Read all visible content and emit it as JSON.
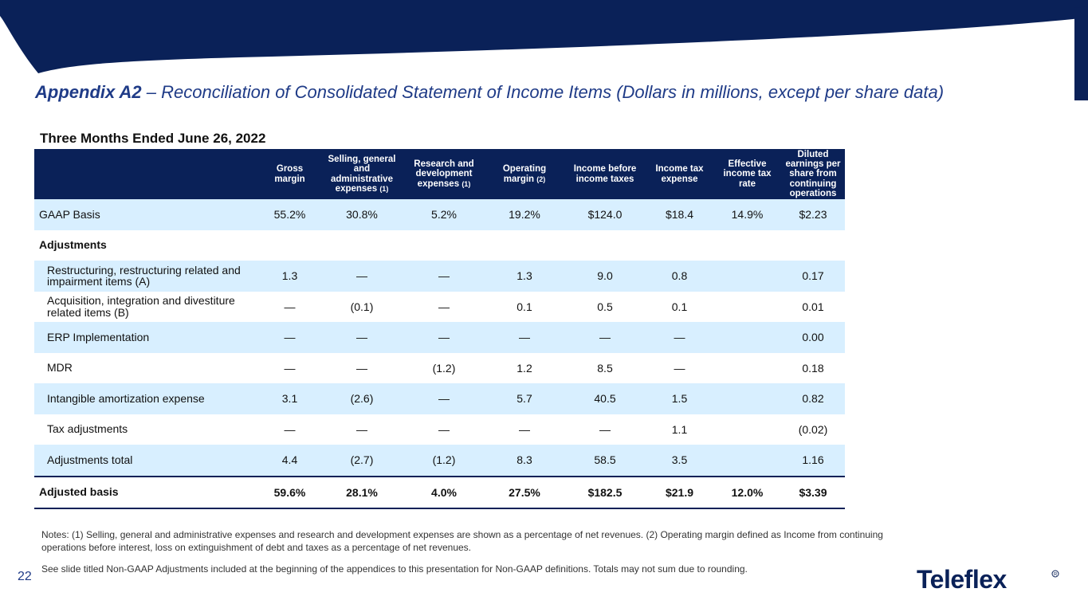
{
  "header": {
    "title_bold": "Appendix A2",
    "title_rest": " – Reconciliation of Consolidated Statement of Income Items (Dollars in millions, except per share data)"
  },
  "period": "Three Months Ended June 26, 2022",
  "table": {
    "columns": [
      {
        "label": "Gross margin",
        "note": ""
      },
      {
        "label": "Selling, general and administrative expenses",
        "note": "(1)"
      },
      {
        "label": "Research and development expenses",
        "note": "(1)"
      },
      {
        "label": "Operating margin",
        "note": "(2)"
      },
      {
        "label": "Income before income taxes",
        "note": ""
      },
      {
        "label": "Income tax expense",
        "note": ""
      },
      {
        "label": "Effective income tax rate",
        "note": ""
      },
      {
        "label": "Diluted earnings per share from continuing operations",
        "note": ""
      }
    ],
    "gaap": {
      "label": "GAAP Basis",
      "values": [
        "55.2%",
        "30.8%",
        "5.2%",
        "19.2%",
        "$124.0",
        "$18.4",
        "14.9%",
        "$2.23"
      ]
    },
    "adjustments_heading": "Adjustments",
    "adjustments": [
      {
        "label": "Restructuring, restructuring related and impairment items (A)",
        "values": [
          "1.3",
          "—",
          "—",
          "1.3",
          "9.0",
          "0.8",
          "",
          "0.17"
        ]
      },
      {
        "label": "Acquisition, integration and divestiture related items (B)",
        "values": [
          "—",
          "(0.1)",
          "—",
          "0.1",
          "0.5",
          "0.1",
          "",
          "0.01"
        ]
      },
      {
        "label": "ERP Implementation",
        "values": [
          "—",
          "—",
          "—",
          "—",
          "—",
          "—",
          "",
          "0.00"
        ]
      },
      {
        "label": "MDR",
        "values": [
          "—",
          "—",
          "(1.2)",
          "1.2",
          "8.5",
          "—",
          "",
          "0.18"
        ]
      },
      {
        "label": "Intangible amortization expense",
        "values": [
          "3.1",
          "(2.6)",
          "—",
          "5.7",
          "40.5",
          "1.5",
          "",
          "0.82"
        ]
      },
      {
        "label": "Tax adjustments",
        "values": [
          "—",
          "—",
          "—",
          "—",
          "—",
          "1.1",
          "",
          "(0.02)"
        ]
      }
    ],
    "adjustments_total": {
      "label": "Adjustments total",
      "values": [
        "4.4",
        "(2.7)",
        "(1.2)",
        "8.3",
        "58.5",
        "3.5",
        "",
        "1.16"
      ]
    },
    "adjusted": {
      "label": "Adjusted basis",
      "values": [
        "59.6%",
        "28.1%",
        "4.0%",
        "27.5%",
        "$182.5",
        "$21.9",
        "12.0%",
        "$3.39"
      ]
    }
  },
  "notes": [
    "Notes: (1) Selling, general and administrative expenses and research and development expenses are shown as a percentage of net revenues.  (2) Operating margin defined as Income from continuing operations before interest, loss on extinguishment of debt and taxes as a percentage of net revenues.",
    "See slide titled Non-GAAP Adjustments included at the beginning of the appendices to this presentation for Non-GAAP definitions. Totals may not sum due to rounding."
  ],
  "page_number": "22",
  "logo_text": "Teleflex",
  "colors": {
    "navy": "#0a2158",
    "title_blue": "#1f3b87",
    "row_shade": "#d8efff"
  }
}
